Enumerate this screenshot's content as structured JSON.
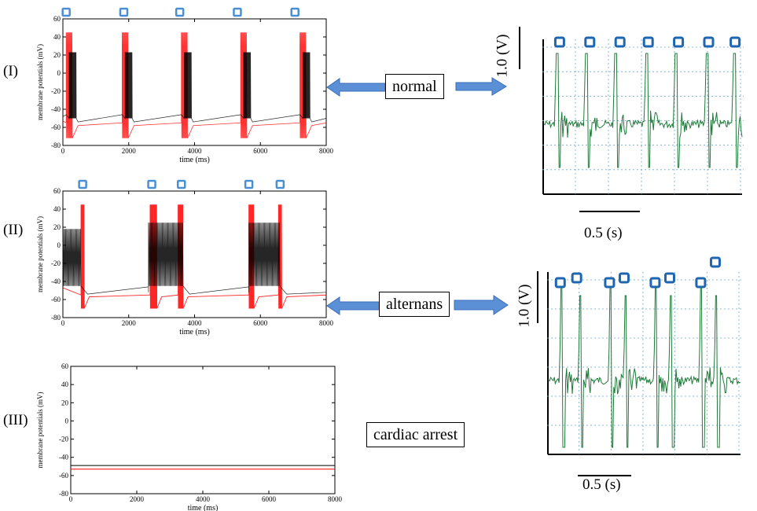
{
  "labels": {
    "panel_I": "(I)",
    "panel_II": "(II)",
    "panel_III": "(III)",
    "normal": "normal",
    "alternans": "alternans",
    "cardiac_arrest": "cardiac arrest",
    "volt_scale": "1.0 (V)",
    "time_scale": "0.5 (s)"
  },
  "colors": {
    "marker": "#4a8fd4",
    "arrow": "#5b8fd6",
    "ecg": "#1f7a3a",
    "grid": "#6aa8c8",
    "sim_black": "#000000",
    "sim_red": "#ff0000"
  },
  "chart_data": [
    {
      "type": "line",
      "panel": "(I)",
      "xlabel": "time (ms)",
      "ylabel": "membrane potentials (mV)",
      "xlim": [
        0,
        8000
      ],
      "ylim": [
        -80,
        60
      ],
      "xticks": [
        0,
        2000,
        4000,
        6000,
        8000
      ],
      "yticks": [
        -80,
        -60,
        -40,
        -20,
        0,
        20,
        40,
        60
      ],
      "burst_centers_ms": [
        250,
        1950,
        3750,
        5550,
        7350
      ],
      "burst_duration_ms": 300,
      "marker_x_ms": [
        100,
        1850,
        3550,
        5300,
        7050
      ],
      "series": [
        {
          "color": "black",
          "baseline_mV": -50,
          "spike_peak_mV": 23,
          "spike_trough_mV": -50
        },
        {
          "color": "red",
          "baseline_mV": -55,
          "spike_peak_mV": 45,
          "spike_trough_mV": -72
        }
      ]
    },
    {
      "type": "line",
      "panel": "(II)",
      "xlabel": "time (ms)",
      "ylabel": "membrane potentials (mV)",
      "xlim": [
        0,
        8000
      ],
      "ylim": [
        -80,
        60
      ],
      "xticks": [
        0,
        2000,
        4000,
        6000,
        8000
      ],
      "yticks": [
        -80,
        -60,
        -40,
        -20,
        0,
        20,
        40,
        60
      ],
      "black_bursts_ms": [
        [
          0,
          550
        ],
        [
          2600,
          3650
        ],
        [
          5650,
          6600
        ]
      ],
      "red_bursts_ms": [
        [
          550,
          650
        ],
        [
          2650,
          2850
        ],
        [
          3500,
          3650
        ],
        [
          5650,
          5800
        ],
        [
          6550,
          6650
        ]
      ],
      "marker_x_ms": [
        600,
        2700,
        3600,
        5650,
        6600
      ],
      "series": [
        {
          "color": "black",
          "baseline_mV": -52,
          "spike_peak_mV": 18,
          "spike_trough_mV": -45
        },
        {
          "color": "red",
          "baseline_mV": -55,
          "spike_peak_mV": 45,
          "spike_trough_mV": -70
        }
      ]
    },
    {
      "type": "line",
      "panel": "(III)",
      "xlabel": "time (ms)",
      "ylabel": "membrane potentials (mV)",
      "xlim": [
        0,
        8000
      ],
      "ylim": [
        -80,
        60
      ],
      "xticks": [
        0,
        2000,
        4000,
        6000,
        8000
      ],
      "yticks": [
        -80,
        -60,
        -40,
        -20,
        0,
        20,
        40,
        60
      ],
      "series": [
        {
          "color": "black",
          "constant_mV": -49
        },
        {
          "color": "red",
          "constant_mV": -53
        }
      ]
    },
    {
      "type": "line",
      "panel": "normal recording",
      "spike_x_frac": [
        0.06,
        0.21,
        0.36,
        0.52,
        0.67,
        0.83,
        0.97
      ],
      "marker_x_frac": [
        0.06,
        0.22,
        0.38,
        0.53,
        0.69,
        0.85,
        0.99
      ]
    },
    {
      "type": "line",
      "panel": "alternans recording",
      "spike_x_frac": [
        0.06,
        0.16,
        0.32,
        0.4,
        0.56,
        0.64,
        0.8,
        0.88
      ],
      "marker_x_frac": [
        0.04,
        0.13,
        0.31,
        0.39,
        0.56,
        0.64,
        0.81,
        0.89
      ]
    }
  ]
}
